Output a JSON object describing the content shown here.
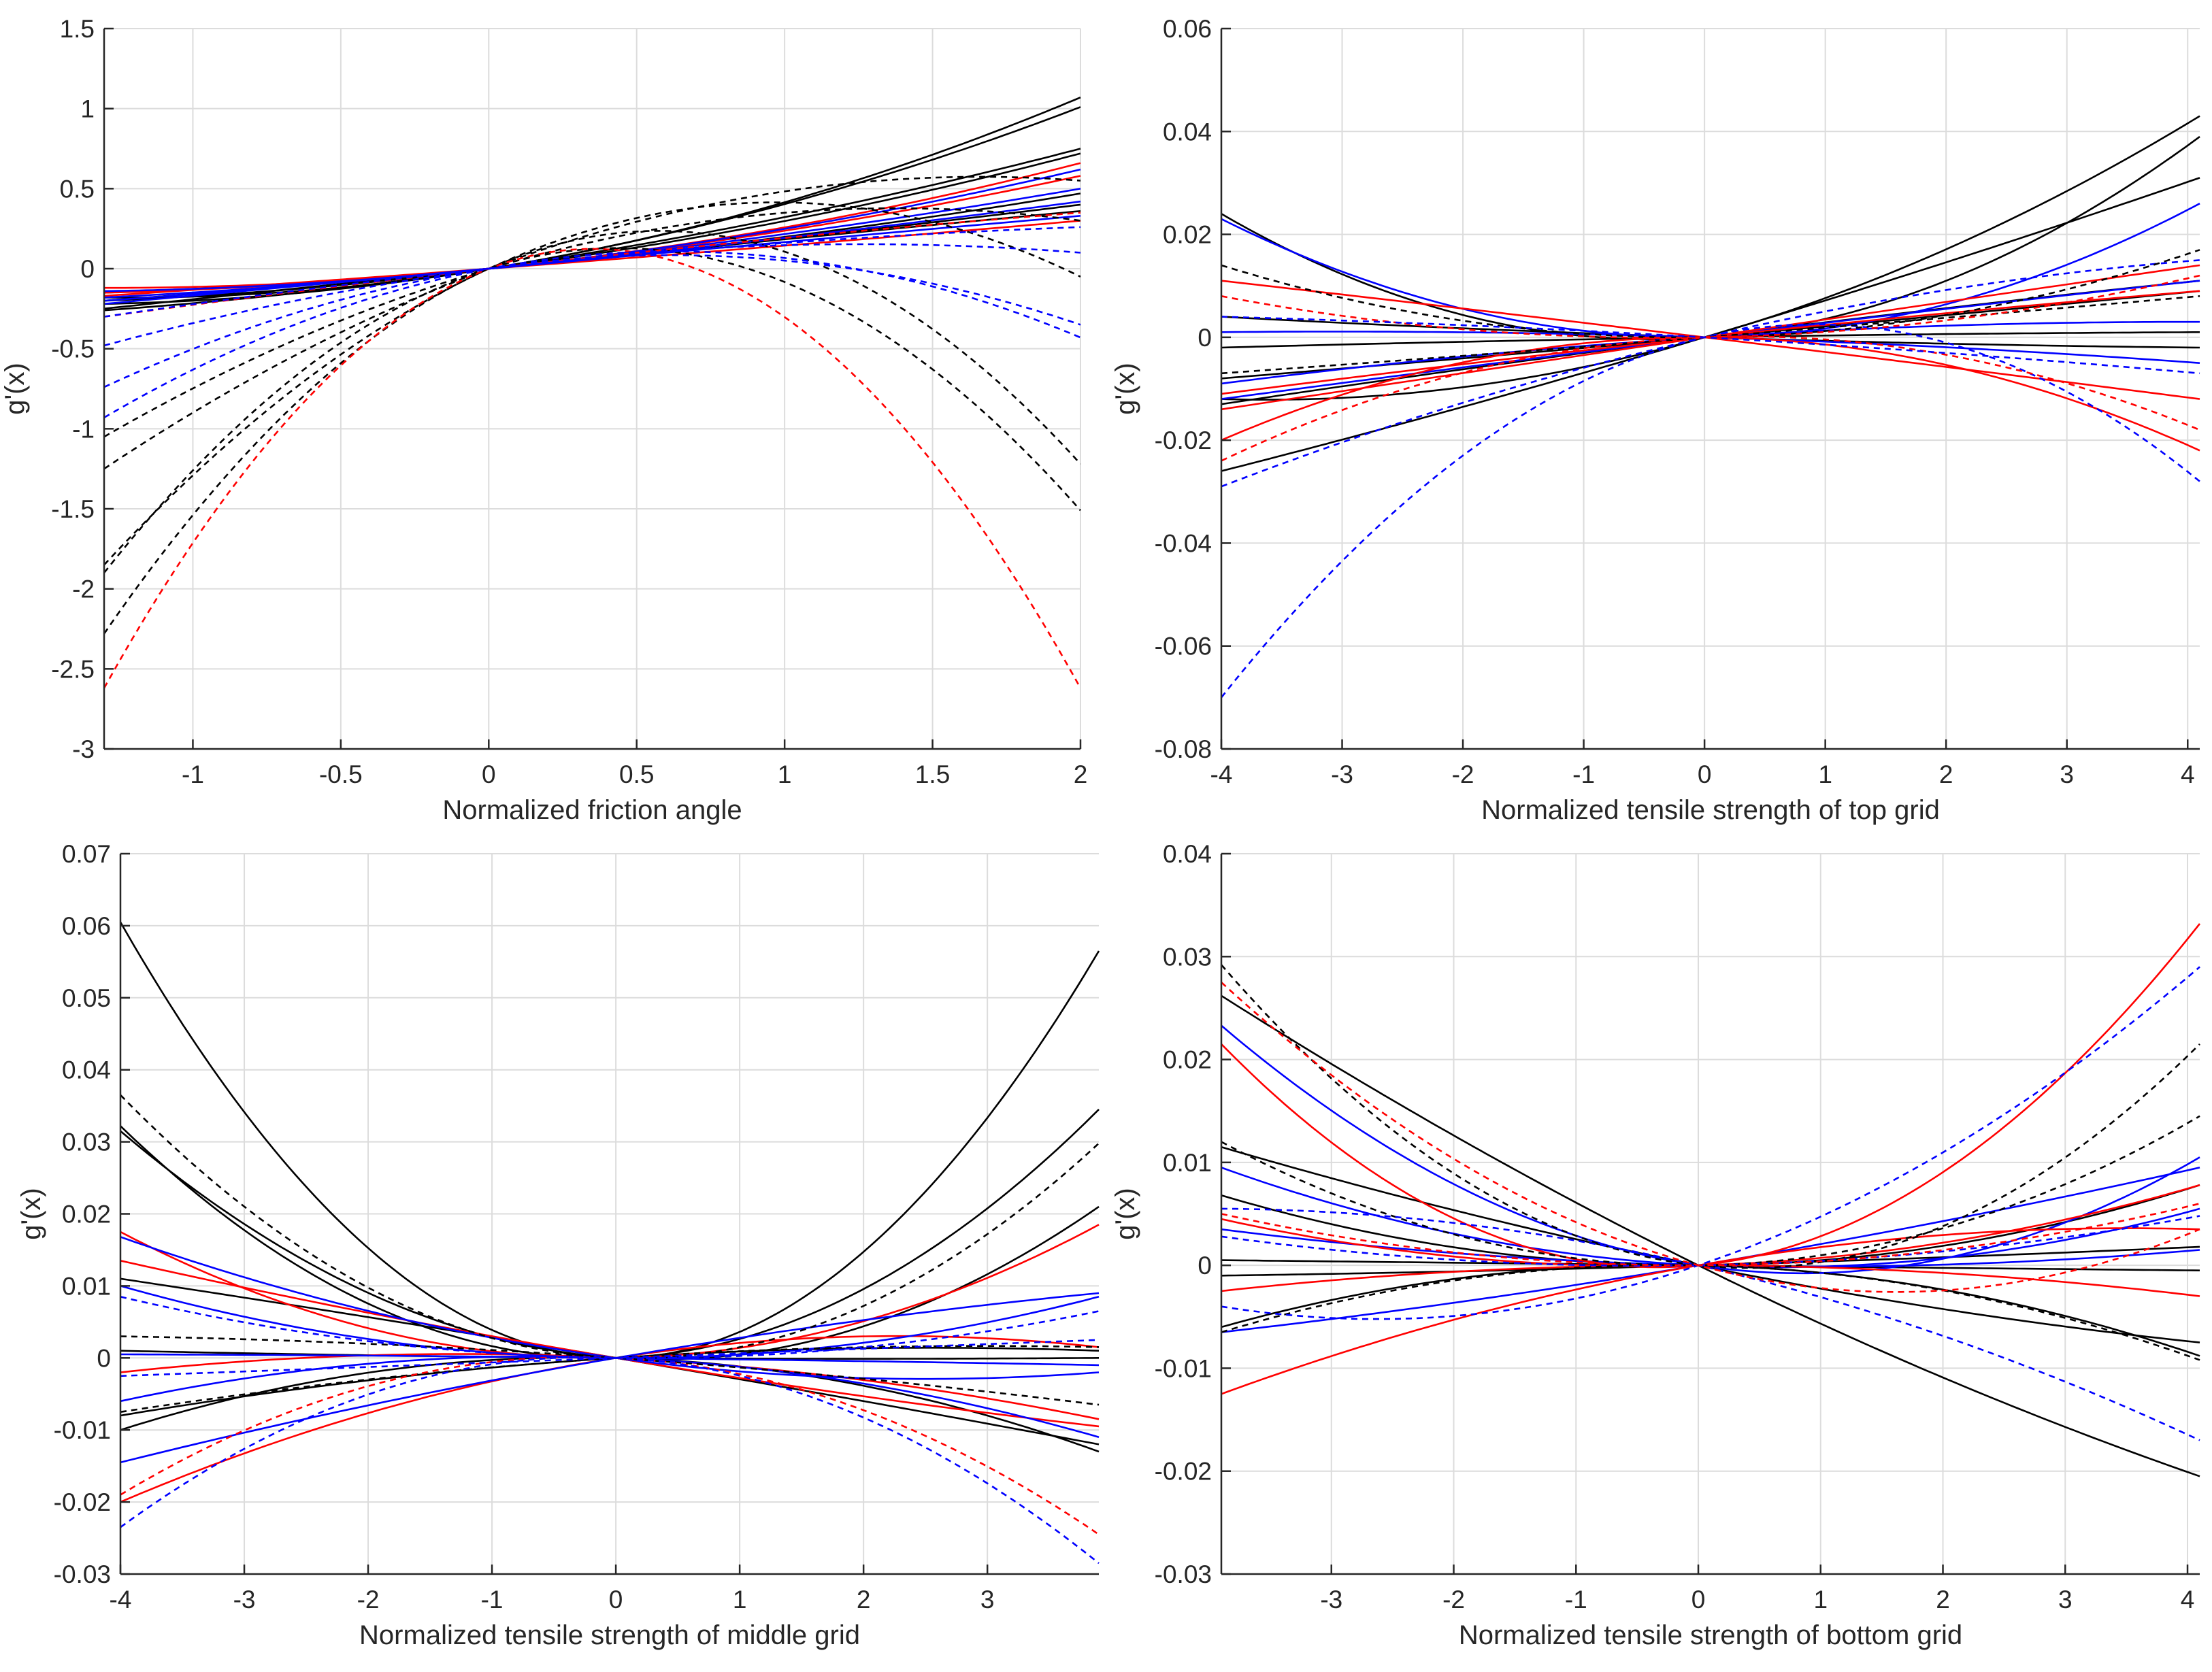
{
  "chart_data": [
    {
      "type": "line",
      "panel": "top-left",
      "xlabel": "Normalized friction angle",
      "ylabel": "g'(x)",
      "xlim": [
        -1.3,
        2
      ],
      "ylim": [
        -3,
        1.5
      ],
      "xticks": [
        -1,
        -0.5,
        0,
        0.5,
        1,
        1.5,
        2
      ],
      "xtick_labels": [
        "-1",
        "-0.5",
        "0",
        "0.5",
        "1",
        "1.5",
        "2"
      ],
      "yticks": [
        -3,
        -2.5,
        -2,
        -1.5,
        -1,
        -0.5,
        0,
        0.5,
        1,
        1.5
      ],
      "ytick_labels": [
        "-3",
        "-2.5",
        "-2",
        "-1.5",
        "-1",
        "-0.5",
        "0",
        "0.5",
        "1",
        "1.5"
      ],
      "grid": true,
      "series": [
        {
          "color": "#000000",
          "style": "solid",
          "left": -0.18,
          "right": 1.07
        },
        {
          "color": "#000000",
          "style": "solid",
          "left": -0.22,
          "right": 1.01
        },
        {
          "color": "#000000",
          "style": "solid",
          "left": -0.26,
          "right": 0.75
        },
        {
          "color": "#000000",
          "style": "solid",
          "left": -0.2,
          "right": 0.72
        },
        {
          "color": "#000000",
          "style": "solid",
          "left": -0.15,
          "right": 0.47
        },
        {
          "color": "#000000",
          "style": "solid",
          "left": -0.2,
          "right": 0.4
        },
        {
          "color": "#000000",
          "style": "solid",
          "left": -0.25,
          "right": 0.36
        },
        {
          "color": "#ff0000",
          "style": "solid",
          "left": -0.12,
          "right": 0.66
        },
        {
          "color": "#ff0000",
          "style": "solid",
          "left": -0.15,
          "right": 0.58
        },
        {
          "color": "#ff0000",
          "style": "solid",
          "left": -0.17,
          "right": 0.3
        },
        {
          "color": "#0000ff",
          "style": "solid",
          "left": -0.14,
          "right": 0.62
        },
        {
          "color": "#0000ff",
          "style": "solid",
          "left": -0.18,
          "right": 0.5
        },
        {
          "color": "#0000ff",
          "style": "solid",
          "left": -0.2,
          "right": 0.42
        },
        {
          "color": "#0000ff",
          "style": "solid",
          "left": -0.22,
          "right": 0.33
        },
        {
          "color": "#000000",
          "style": "dashed",
          "left": -1.25,
          "right": 0.55
        },
        {
          "color": "#000000",
          "style": "dashed",
          "left": -1.05,
          "right": 0.3
        },
        {
          "color": "#000000",
          "style": "dashed",
          "left": -1.85,
          "right": -0.05
        },
        {
          "color": "#000000",
          "style": "dashed",
          "left": -2.28,
          "right": -1.22
        },
        {
          "color": "#000000",
          "style": "dashed",
          "left": -1.9,
          "right": -1.51
        },
        {
          "color": "#ff0000",
          "style": "dashed",
          "left": -2.62,
          "right": -2.62
        },
        {
          "color": "#ff0000",
          "style": "dashed",
          "left": -0.3,
          "right": 0.35
        },
        {
          "color": "#0000ff",
          "style": "dashed",
          "left": -0.48,
          "right": 0.1
        },
        {
          "color": "#0000ff",
          "style": "dashed",
          "left": -0.74,
          "right": -0.35
        },
        {
          "color": "#0000ff",
          "style": "dashed",
          "left": -0.93,
          "right": -0.43
        },
        {
          "color": "#0000ff",
          "style": "dashed",
          "left": -0.3,
          "right": 0.26
        }
      ]
    },
    {
      "type": "line",
      "panel": "top-right",
      "xlabel": "Normalized tensile strength of top grid",
      "ylabel": "g'(x)",
      "xlim": [
        -4,
        4.1
      ],
      "ylim": [
        -0.08,
        0.06
      ],
      "xticks": [
        -4,
        -3,
        -2,
        -1,
        0,
        1,
        2,
        3,
        4
      ],
      "xtick_labels": [
        "-4",
        "-3",
        "-2",
        "-1",
        "0",
        "1",
        "2",
        "3",
        "4"
      ],
      "yticks": [
        -0.08,
        -0.06,
        -0.04,
        -0.02,
        0,
        0.02,
        0.04,
        0.06
      ],
      "ytick_labels": [
        "-0.08",
        "-0.06",
        "-0.04",
        "-0.02",
        "0",
        "0.02",
        "0.04",
        "0.06"
      ],
      "grid": true,
      "series": [
        {
          "color": "#000000",
          "style": "solid",
          "left": -0.012,
          "right": 0.043
        },
        {
          "color": "#000000",
          "style": "solid",
          "left": -0.026,
          "right": 0.031
        },
        {
          "color": "#000000",
          "style": "solid",
          "left": 0.024,
          "right": 0.039
        },
        {
          "color": "#000000",
          "style": "solid",
          "left": -0.013,
          "right": 0.011
        },
        {
          "color": "#000000",
          "style": "solid",
          "left": 0.004,
          "right": -0.002
        },
        {
          "color": "#000000",
          "style": "solid",
          "left": -0.002,
          "right": 0.001
        },
        {
          "color": "#000000",
          "style": "solid",
          "left": -0.008,
          "right": 0.009
        },
        {
          "color": "#0000ff",
          "style": "solid",
          "left": 0.023,
          "right": 0.026
        },
        {
          "color": "#0000ff",
          "style": "solid",
          "left": -0.009,
          "right": 0.003
        },
        {
          "color": "#0000ff",
          "style": "solid",
          "left": 0.001,
          "right": -0.005
        },
        {
          "color": "#0000ff",
          "style": "solid",
          "left": -0.012,
          "right": 0.011
        },
        {
          "color": "#ff0000",
          "style": "solid",
          "left": -0.02,
          "right": -0.022
        },
        {
          "color": "#ff0000",
          "style": "solid",
          "left": -0.014,
          "right": 0.014
        },
        {
          "color": "#ff0000",
          "style": "solid",
          "left": 0.011,
          "right": -0.012
        },
        {
          "color": "#ff0000",
          "style": "solid",
          "left": -0.011,
          "right": 0.009
        },
        {
          "color": "#0000ff",
          "style": "dashed",
          "left": -0.07,
          "right": -0.028
        },
        {
          "color": "#0000ff",
          "style": "dashed",
          "left": -0.029,
          "right": 0.015
        },
        {
          "color": "#000000",
          "style": "dashed",
          "left": 0.014,
          "right": 0.017
        },
        {
          "color": "#000000",
          "style": "dashed",
          "left": -0.007,
          "right": 0.008
        },
        {
          "color": "#ff0000",
          "style": "dashed",
          "left": -0.024,
          "right": -0.018
        },
        {
          "color": "#ff0000",
          "style": "dashed",
          "left": 0.008,
          "right": 0.012
        },
        {
          "color": "#0000ff",
          "style": "dashed",
          "left": 0.004,
          "right": -0.007
        }
      ]
    },
    {
      "type": "line",
      "panel": "bottom-left",
      "xlabel": "Normalized tensile strength of middle grid",
      "ylabel": "g'(x)",
      "xlim": [
        -4,
        3.9
      ],
      "ylim": [
        -0.03,
        0.07
      ],
      "xticks": [
        -4,
        -3,
        -2,
        -1,
        0,
        1,
        2,
        3
      ],
      "xtick_labels": [
        "-4",
        "-3",
        "-2",
        "-1",
        "0",
        "1",
        "2",
        "3"
      ],
      "yticks": [
        -0.03,
        -0.02,
        -0.01,
        0,
        0.01,
        0.02,
        0.03,
        0.04,
        0.05,
        0.06,
        0.07
      ],
      "ytick_labels": [
        "-0.03",
        "-0.02",
        "-0.01",
        "0",
        "0.01",
        "0.02",
        "0.03",
        "0.04",
        "0.05",
        "0.06",
        "0.07"
      ],
      "grid": true,
      "series": [
        {
          "color": "#000000",
          "style": "solid",
          "left": 0.0605,
          "right": 0.0565
        },
        {
          "color": "#000000",
          "style": "solid",
          "left": 0.0322,
          "right": 0.0345
        },
        {
          "color": "#000000",
          "style": "solid",
          "left": 0.0315,
          "right": 0.021
        },
        {
          "color": "#000000",
          "style": "solid",
          "left": 0.011,
          "right": -0.012
        },
        {
          "color": "#000000",
          "style": "solid",
          "left": -0.008,
          "right": 0.001
        },
        {
          "color": "#000000",
          "style": "solid",
          "left": 0.001,
          "right": 0.0
        },
        {
          "color": "#000000",
          "style": "solid",
          "left": -0.01,
          "right": -0.013
        },
        {
          "color": "#ff0000",
          "style": "solid",
          "left": 0.0175,
          "right": 0.0185
        },
        {
          "color": "#ff0000",
          "style": "solid",
          "left": 0.0135,
          "right": -0.0095
        },
        {
          "color": "#ff0000",
          "style": "solid",
          "left": -0.02,
          "right": 0.0015
        },
        {
          "color": "#ff0000",
          "style": "solid",
          "left": -0.002,
          "right": -0.0085
        },
        {
          "color": "#0000ff",
          "style": "solid",
          "left": 0.0168,
          "right": -0.002
        },
        {
          "color": "#0000ff",
          "style": "solid",
          "left": 0.01,
          "right": 0.0085
        },
        {
          "color": "#0000ff",
          "style": "solid",
          "left": -0.0145,
          "right": 0.009
        },
        {
          "color": "#0000ff",
          "style": "solid",
          "left": -0.006,
          "right": -0.011
        },
        {
          "color": "#0000ff",
          "style": "solid",
          "left": 0.0005,
          "right": -0.001
        },
        {
          "color": "#000000",
          "style": "dashed",
          "left": 0.0365,
          "right": 0.0298
        },
        {
          "color": "#000000",
          "style": "dashed",
          "left": 0.003,
          "right": -0.0065
        },
        {
          "color": "#000000",
          "style": "dashed",
          "left": -0.0075,
          "right": 0.0015
        },
        {
          "color": "#ff0000",
          "style": "dashed",
          "left": -0.019,
          "right": -0.0245
        },
        {
          "color": "#0000ff",
          "style": "dashed",
          "left": -0.0235,
          "right": -0.0285
        },
        {
          "color": "#0000ff",
          "style": "dashed",
          "left": 0.0085,
          "right": 0.0065
        },
        {
          "color": "#0000ff",
          "style": "dashed",
          "left": -0.0025,
          "right": 0.0025
        }
      ]
    },
    {
      "type": "line",
      "panel": "bottom-right",
      "xlabel": "Normalized tensile strength of bottom grid",
      "ylabel": "g'(x)",
      "xlim": [
        -3.9,
        4.1
      ],
      "ylim": [
        -0.03,
        0.04
      ],
      "xticks": [
        -3,
        -2,
        -1,
        0,
        1,
        2,
        3,
        4
      ],
      "xtick_labels": [
        "-3",
        "-2",
        "-1",
        "0",
        "1",
        "2",
        "3",
        "4"
      ],
      "yticks": [
        -0.03,
        -0.02,
        -0.01,
        0,
        0.01,
        0.02,
        0.03,
        0.04
      ],
      "ytick_labels": [
        "-0.03",
        "-0.02",
        "-0.01",
        "0",
        "0.01",
        "0.02",
        "0.03",
        "0.04"
      ],
      "grid": true,
      "series": [
        {
          "color": "#000000",
          "style": "solid",
          "left": 0.0262,
          "right": -0.0205
        },
        {
          "color": "#000000",
          "style": "solid",
          "left": 0.0115,
          "right": -0.0075
        },
        {
          "color": "#000000",
          "style": "solid",
          "left": -0.006,
          "right": -0.0088
        },
        {
          "color": "#000000",
          "style": "solid",
          "left": 0.0068,
          "right": 0.0078
        },
        {
          "color": "#000000",
          "style": "solid",
          "left": -0.001,
          "right": 0.0018
        },
        {
          "color": "#000000",
          "style": "solid",
          "left": 0.0005,
          "right": -0.0005
        },
        {
          "color": "#0000ff",
          "style": "solid",
          "left": 0.0233,
          "right": 0.0105
        },
        {
          "color": "#0000ff",
          "style": "solid",
          "left": 0.0095,
          "right": 0.0055
        },
        {
          "color": "#0000ff",
          "style": "solid",
          "left": -0.0065,
          "right": 0.0095
        },
        {
          "color": "#0000ff",
          "style": "solid",
          "left": 0.0035,
          "right": 0.0015
        },
        {
          "color": "#ff0000",
          "style": "solid",
          "left": 0.0215,
          "right": 0.0332
        },
        {
          "color": "#ff0000",
          "style": "solid",
          "left": -0.0125,
          "right": 0.0035
        },
        {
          "color": "#ff0000",
          "style": "solid",
          "left": 0.0045,
          "right": 0.0078
        },
        {
          "color": "#ff0000",
          "style": "solid",
          "left": -0.0025,
          "right": -0.003
        },
        {
          "color": "#000000",
          "style": "dashed",
          "left": 0.0292,
          "right": 0.0215
        },
        {
          "color": "#000000",
          "style": "dashed",
          "left": 0.012,
          "right": 0.0145
        },
        {
          "color": "#000000",
          "style": "dashed",
          "left": -0.0065,
          "right": -0.0092
        },
        {
          "color": "#0000ff",
          "style": "dashed",
          "left": -0.004,
          "right": 0.029
        },
        {
          "color": "#0000ff",
          "style": "dashed",
          "left": 0.0055,
          "right": -0.017
        },
        {
          "color": "#0000ff",
          "style": "dashed",
          "left": 0.0028,
          "right": 0.0048
        },
        {
          "color": "#ff0000",
          "style": "dashed",
          "left": 0.0275,
          "right": 0.0035
        },
        {
          "color": "#ff0000",
          "style": "dashed",
          "left": 0.005,
          "right": 0.006
        }
      ]
    }
  ]
}
